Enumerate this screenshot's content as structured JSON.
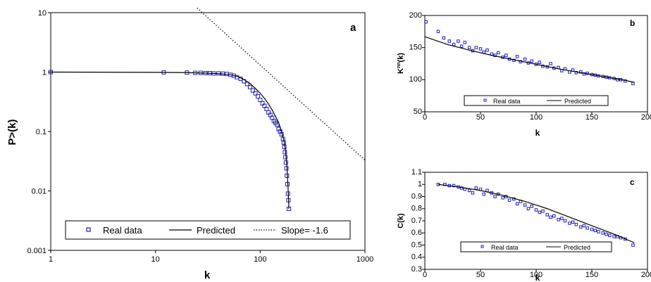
{
  "chart_data": [
    {
      "panel": "a",
      "type": "scatter",
      "xscale": "log",
      "yscale": "log",
      "xlim": [
        1,
        1000
      ],
      "ylim": [
        0.001,
        10
      ],
      "xlabel": "k",
      "ylabel": "P>(k)",
      "xticks": [
        "1",
        "10",
        "100",
        "1000"
      ],
      "yticks": [
        "0.001",
        "0.01",
        "0.1",
        "1",
        "10"
      ],
      "grid": false,
      "legend_position": "bottom",
      "series": [
        {
          "name": "Real data",
          "kind": "markers",
          "color": "#1f1fb0",
          "x": [
            1,
            12,
            20,
            24,
            27,
            30,
            33,
            36,
            40,
            44,
            48,
            52,
            56,
            60,
            65,
            70,
            75,
            80,
            85,
            90,
            95,
            100,
            105,
            110,
            115,
            120,
            125,
            130,
            135,
            140,
            145,
            150,
            155,
            160,
            165,
            168,
            170,
            172,
            174,
            176,
            178,
            180,
            182,
            184,
            186,
            188
          ],
          "y": [
            1,
            0.99,
            0.98,
            0.97,
            0.97,
            0.96,
            0.96,
            0.95,
            0.95,
            0.94,
            0.93,
            0.9,
            0.87,
            0.82,
            0.77,
            0.7,
            0.63,
            0.56,
            0.49,
            0.44,
            0.39,
            0.34,
            0.3,
            0.27,
            0.24,
            0.21,
            0.19,
            0.17,
            0.15,
            0.14,
            0.13,
            0.11,
            0.1,
            0.09,
            0.075,
            0.065,
            0.055,
            0.045,
            0.037,
            0.03,
            0.024,
            0.018,
            0.013,
            0.009,
            0.007,
            0.005
          ]
        },
        {
          "name": "Predicted",
          "kind": "line",
          "color": "#000000",
          "x": [
            1,
            10,
            20,
            30,
            40,
            50,
            60,
            70,
            80,
            90,
            100,
            110,
            120,
            130,
            140,
            150,
            160,
            170,
            175,
            180,
            185,
            188
          ],
          "y": [
            1,
            0.99,
            0.98,
            0.96,
            0.94,
            0.91,
            0.85,
            0.75,
            0.64,
            0.53,
            0.44,
            0.36,
            0.29,
            0.23,
            0.18,
            0.14,
            0.1,
            0.065,
            0.045,
            0.025,
            0.01,
            0.005
          ]
        },
        {
          "name": "Slope= -1.6",
          "kind": "dotted-line",
          "color": "#000000",
          "x": [
            25,
            1000
          ],
          "y": [
            12,
            0.033
          ]
        }
      ]
    },
    {
      "panel": "b",
      "type": "scatter",
      "xlim": [
        0,
        200
      ],
      "ylim": [
        50,
        200
      ],
      "xlabel": "k",
      "ylabel": "Knn(k)",
      "ylabel_main": "K",
      "ylabel_sup": "nn",
      "ylabel_tail": "(k)",
      "xticks": [
        "0",
        "50",
        "100",
        "150",
        "200"
      ],
      "yticks": [
        "50",
        "100",
        "150",
        "200"
      ],
      "grid": false,
      "legend_position": "bottom",
      "series": [
        {
          "name": "Real data",
          "kind": "markers",
          "color": "#1f1fb0",
          "x": [
            1,
            12,
            17,
            22,
            26,
            30,
            33,
            36,
            40,
            43,
            46,
            50,
            53,
            56,
            60,
            63,
            66,
            70,
            73,
            76,
            80,
            83,
            86,
            90,
            93,
            96,
            100,
            103,
            106,
            110,
            113,
            116,
            120,
            123,
            126,
            130,
            133,
            136,
            140,
            143,
            146,
            150,
            153,
            156,
            160,
            163,
            166,
            170,
            173,
            176,
            180,
            187
          ],
          "y": [
            190,
            175,
            165,
            160,
            155,
            160,
            152,
            158,
            150,
            145,
            150,
            148,
            143,
            146,
            140,
            138,
            142,
            135,
            138,
            132,
            130,
            136,
            128,
            132,
            126,
            129,
            124,
            127,
            121,
            120,
            125,
            118,
            119,
            114,
            117,
            112,
            115,
            111,
            112,
            109,
            110,
            108,
            107,
            106,
            105,
            104,
            103,
            102,
            100,
            100,
            98,
            94
          ]
        },
        {
          "name": "Predicted",
          "kind": "line",
          "color": "#000000",
          "x": [
            0,
            20,
            40,
            60,
            80,
            100,
            120,
            140,
            160,
            180,
            188
          ],
          "y": [
            167,
            155,
            146,
            138,
            131,
            124,
            117,
            111,
            105,
            99,
            96
          ]
        }
      ]
    },
    {
      "panel": "c",
      "type": "scatter",
      "xlim": [
        0,
        200
      ],
      "ylim": [
        0.3,
        1.1
      ],
      "xlabel": "k",
      "ylabel": "C(k)",
      "xticks": [
        "0",
        "50",
        "100",
        "150",
        "200"
      ],
      "yticks": [
        "0.3",
        "0.4",
        "0.5",
        "0.6",
        "0.7",
        "0.8",
        "0.9",
        "1",
        "1.1"
      ],
      "grid": false,
      "legend_position": "bottom",
      "series": [
        {
          "name": "Real data",
          "kind": "markers",
          "color": "#1f1fb0",
          "x": [
            12,
            18,
            22,
            26,
            30,
            33,
            36,
            40,
            43,
            46,
            50,
            53,
            56,
            60,
            63,
            66,
            70,
            73,
            76,
            80,
            83,
            86,
            90,
            93,
            96,
            100,
            103,
            106,
            110,
            113,
            116,
            120,
            123,
            126,
            130,
            133,
            136,
            140,
            143,
            146,
            150,
            153,
            156,
            160,
            163,
            166,
            170,
            173,
            176,
            180,
            187
          ],
          "y": [
            1.0,
            1.0,
            0.99,
            0.99,
            0.98,
            0.97,
            0.96,
            0.95,
            0.93,
            0.97,
            0.96,
            0.92,
            0.95,
            0.93,
            0.9,
            0.92,
            0.89,
            0.9,
            0.87,
            0.88,
            0.84,
            0.86,
            0.83,
            0.8,
            0.82,
            0.79,
            0.77,
            0.78,
            0.75,
            0.73,
            0.74,
            0.71,
            0.72,
            0.7,
            0.68,
            0.69,
            0.67,
            0.65,
            0.66,
            0.64,
            0.63,
            0.62,
            0.61,
            0.6,
            0.59,
            0.58,
            0.57,
            0.57,
            0.56,
            0.55,
            0.5
          ]
        },
        {
          "name": "Predicted",
          "kind": "line",
          "color": "#000000",
          "x": [
            12,
            30,
            50,
            70,
            90,
            110,
            130,
            150,
            170,
            188
          ],
          "y": [
            1.0,
            0.98,
            0.95,
            0.91,
            0.86,
            0.8,
            0.73,
            0.66,
            0.59,
            0.52
          ]
        }
      ]
    }
  ]
}
